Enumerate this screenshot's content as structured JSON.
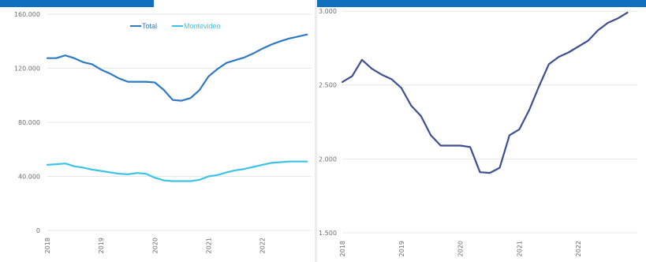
{
  "chart_data": [
    {
      "type": "line",
      "title": "",
      "xlabel": "",
      "ylabel": "",
      "ylim": [
        0,
        160000
      ],
      "y_ticks": [
        "0",
        "40.000",
        "80.000",
        "120.000",
        "160.000"
      ],
      "x_ticks": [
        "2018",
        "2019",
        "2020",
        "2021",
        "2022"
      ],
      "grid": true,
      "legend": "top-center",
      "series": [
        {
          "name": "Total",
          "color": "#2f78c2",
          "x": [
            "2018-01",
            "2018-03",
            "2018-05",
            "2018-07",
            "2018-09",
            "2018-11",
            "2019-01",
            "2019-03",
            "2019-05",
            "2019-07",
            "2019-09",
            "2019-11",
            "2020-01",
            "2020-03",
            "2020-05",
            "2020-07",
            "2020-09",
            "2020-11",
            "2021-01",
            "2021-03",
            "2021-05",
            "2021-07",
            "2021-09",
            "2021-11",
            "2022-01",
            "2022-03",
            "2022-05",
            "2022-07",
            "2022-09",
            "2022-11"
          ],
          "values": [
            127500,
            127500,
            129500,
            127500,
            124500,
            123000,
            119000,
            116000,
            112500,
            110000,
            110000,
            110000,
            109500,
            104000,
            96500,
            96000,
            98000,
            104000,
            114000,
            119500,
            124000,
            126000,
            128000,
            131000,
            134500,
            137500,
            140000,
            142000,
            143500,
            145000
          ]
        },
        {
          "name": "Montevideo",
          "color": "#3ec3e8",
          "x": [
            "2018-01",
            "2018-03",
            "2018-05",
            "2018-07",
            "2018-09",
            "2018-11",
            "2019-01",
            "2019-03",
            "2019-05",
            "2019-07",
            "2019-09",
            "2019-11",
            "2020-01",
            "2020-03",
            "2020-05",
            "2020-07",
            "2020-09",
            "2020-11",
            "2021-01",
            "2021-03",
            "2021-05",
            "2021-07",
            "2021-09",
            "2021-11",
            "2022-01",
            "2022-03",
            "2022-05",
            "2022-07",
            "2022-09",
            "2022-11"
          ],
          "values": [
            48500,
            49000,
            49500,
            47500,
            46500,
            45000,
            44000,
            43000,
            42000,
            41500,
            42500,
            42000,
            39000,
            37000,
            36500,
            36500,
            36500,
            37500,
            40000,
            41000,
            43000,
            44500,
            45500,
            47000,
            48500,
            50000,
            50500,
            51000,
            51000,
            51000
          ]
        }
      ]
    },
    {
      "type": "line",
      "title": "",
      "xlabel": "",
      "ylabel": "",
      "ylim": [
        1500,
        3000
      ],
      "y_ticks": [
        "1.500",
        "2.000",
        "2.500",
        "3.000"
      ],
      "x_ticks": [
        "2018",
        "2019",
        "2020",
        "2021",
        "2022"
      ],
      "grid": true,
      "series": [
        {
          "color": "#3d4f8f",
          "x": [
            "2018-01",
            "2018-03",
            "2018-05",
            "2018-07",
            "2018-09",
            "2018-11",
            "2019-01",
            "2019-03",
            "2019-05",
            "2019-07",
            "2019-09",
            "2019-11",
            "2020-01",
            "2020-03",
            "2020-05",
            "2020-07",
            "2020-09",
            "2020-11",
            "2021-01",
            "2021-03",
            "2021-05",
            "2021-07",
            "2021-09",
            "2021-11",
            "2022-01",
            "2022-03",
            "2022-05",
            "2022-07",
            "2022-09",
            "2022-11"
          ],
          "values": [
            2520,
            2560,
            2670,
            2610,
            2570,
            2540,
            2480,
            2360,
            2290,
            2160,
            2090,
            2090,
            2090,
            2080,
            1910,
            1905,
            1940,
            2160,
            2200,
            2330,
            2490,
            2640,
            2690,
            2720,
            2760,
            2800,
            2870,
            2920,
            2950,
            2990
          ]
        }
      ]
    }
  ]
}
